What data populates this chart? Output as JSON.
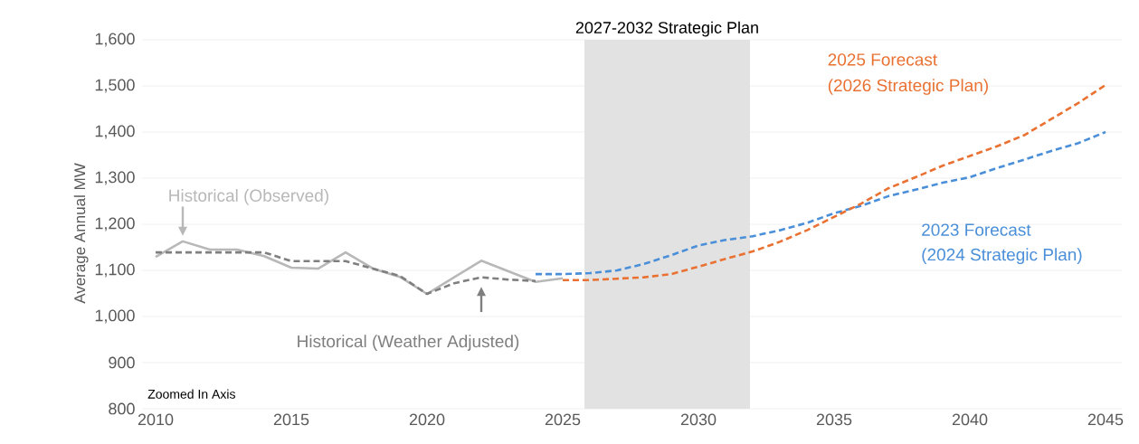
{
  "chart_data": {
    "type": "line",
    "ylabel": "Average Annual MW",
    "xlim": [
      2009.5,
      2045.6
    ],
    "ylim": [
      800,
      1600
    ],
    "xticks": [
      2010,
      2015,
      2020,
      2025,
      2030,
      2035,
      2040,
      2045
    ],
    "yticks": [
      {
        "value": 800,
        "label": "800"
      },
      {
        "value": 900,
        "label": "900"
      },
      {
        "value": 1000,
        "label": "1,000"
      },
      {
        "value": 1100,
        "label": "1,100"
      },
      {
        "value": 1200,
        "label": "1,200"
      },
      {
        "value": 1300,
        "label": "1,300"
      },
      {
        "value": 1400,
        "label": "1,400"
      },
      {
        "value": 1500,
        "label": "1,500"
      },
      {
        "value": 1600,
        "label": "1,600"
      }
    ],
    "grid": "y",
    "bands": [
      {
        "axis": "x",
        "from": 2025.8,
        "to": 2031.9,
        "label": "2027-2032 Strategic Plan",
        "color": "#e2e2e2"
      }
    ],
    "series": [
      {
        "name": "Historical (Observed)",
        "color": "#b8b8b8",
        "line_style": "solid",
        "x": [
          2010,
          2011,
          2012,
          2013,
          2014,
          2015,
          2016,
          2017,
          2018,
          2019,
          2020,
          2021,
          2022,
          2023,
          2024,
          2025
        ],
        "values": [
          1129,
          1163,
          1145,
          1145,
          1131,
          1106,
          1104,
          1139,
          1104,
          1086,
          1049,
          1085,
          1121,
          1098,
          1075,
          1083
        ]
      },
      {
        "name": "Historical (Weather Adjusted)",
        "color": "#7f7f7f",
        "line_style": "dashed",
        "x": [
          2010,
          2011,
          2012,
          2013,
          2014,
          2015,
          2016,
          2017,
          2018,
          2019,
          2020,
          2021,
          2022,
          2023,
          2024
        ],
        "values": [
          1139,
          1139,
          1139,
          1139,
          1139,
          1120,
          1120,
          1120,
          1104,
          1088,
          1049,
          1072,
          1085,
          1080,
          1077
        ]
      },
      {
        "name": "2023 Forecast",
        "color": "#4a8fd8",
        "line_style": "dashed",
        "x": [
          2024,
          2025,
          2026,
          2027,
          2028,
          2029,
          2030,
          2031,
          2032,
          2033,
          2034,
          2035,
          2036,
          2037,
          2038,
          2039,
          2040,
          2041,
          2042,
          2043,
          2044,
          2045
        ],
        "values": [
          1092,
          1092,
          1094,
          1100,
          1114,
          1133,
          1154,
          1166,
          1174,
          1187,
          1203,
          1224,
          1240,
          1261,
          1275,
          1290,
          1302,
          1322,
          1340,
          1359,
          1376,
          1400
        ]
      },
      {
        "name": "2025 Forecast",
        "color": "#e97132",
        "line_style": "dashed",
        "x": [
          2025,
          2026,
          2027,
          2028,
          2029,
          2030,
          2031,
          2032,
          2033,
          2034,
          2035,
          2036,
          2037,
          2038,
          2039,
          2040,
          2041,
          2042,
          2043,
          2044,
          2045
        ],
        "values": [
          1079,
          1079,
          1082,
          1085,
          1092,
          1108,
          1125,
          1141,
          1162,
          1187,
          1216,
          1245,
          1278,
          1302,
          1327,
          1348,
          1369,
          1393,
          1428,
          1463,
          1502
        ]
      }
    ],
    "annotations": [
      "Zoomed In Axis",
      "(2024 Strategic Plan)",
      "(2026 Strategic Plan)"
    ]
  }
}
